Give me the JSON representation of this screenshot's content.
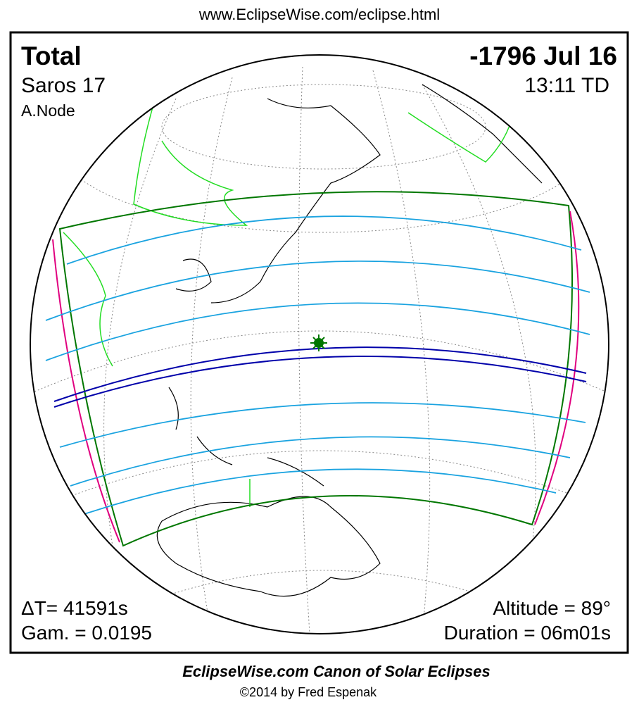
{
  "header": {
    "url": "www.EclipseWise.com/eclipse.html"
  },
  "eclipse": {
    "type": "Total",
    "date": "-1796 Jul 16",
    "saros": "Saros  17",
    "time": "13:11 TD",
    "node": "A.Node",
    "delta_t": "ΔT=  41591s",
    "gamma": "Gam. = 0.0195",
    "altitude": "Altitude = 89°",
    "duration": "Duration = 06m01s"
  },
  "footer": {
    "title": "EclipseWise.com Canon of Solar Eclipses",
    "copyright": "©2014 by Fred Espenak"
  }
}
